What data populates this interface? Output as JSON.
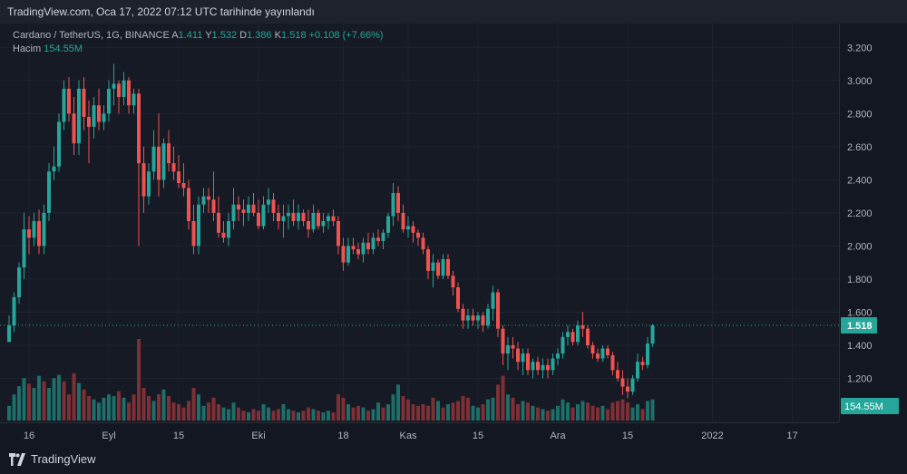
{
  "header": {
    "published": "TradingView.com, Oca 17, 2022 07:12 UTC tarihinde yayınlandı"
  },
  "legend": {
    "symbol": "Cardano / TetherUS, 1G, BINANCE",
    "o_label": "A",
    "o_value": "1.411",
    "h_label": "Y",
    "h_value": "1.532",
    "l_label": "D",
    "l_value": "1.386",
    "c_label": "K",
    "c_value": "1.518",
    "change": "+0.108 (+7.66%)",
    "volume_label": "Hacim",
    "volume_value": "154.55M"
  },
  "price_badge": "1.518",
  "volume_badge": "154.55M",
  "footer": {
    "brand": "TradingView"
  },
  "colors": {
    "up": "#26a69a",
    "down": "#ef5350",
    "up_vol": "#1e6e69",
    "down_vol": "#7e3035",
    "grid": "#1f2330",
    "text": "#b2b5be"
  },
  "chart_data": {
    "type": "candlestick",
    "yticks": [
      "1.200",
      "1.400",
      "1.600",
      "1.800",
      "2.000",
      "2.200",
      "2.400",
      "2.600",
      "2.800",
      "3.000",
      "3.200"
    ],
    "ylim": [
      1.0,
      3.3
    ],
    "xticks": [
      {
        "label": "16",
        "index": 4
      },
      {
        "label": "Eyl",
        "index": 20
      },
      {
        "label": "15",
        "index": 34
      },
      {
        "label": "Eki",
        "index": 50
      },
      {
        "label": "18",
        "index": 67
      },
      {
        "label": "Kas",
        "index": 80
      },
      {
        "label": "15",
        "index": 94
      },
      {
        "label": "Ara",
        "index": 110
      },
      {
        "label": "15",
        "index": 124
      },
      {
        "label": "2022",
        "index": 141
      },
      {
        "label": "17",
        "index": 157
      }
    ],
    "ohlc": [
      [
        1.42,
        1.58,
        1.42,
        1.52
      ],
      [
        1.52,
        1.72,
        1.48,
        1.69
      ],
      [
        1.69,
        1.9,
        1.65,
        1.87
      ],
      [
        1.87,
        2.2,
        1.8,
        2.1
      ],
      [
        2.1,
        2.18,
        1.95,
        2.05
      ],
      [
        2.05,
        2.2,
        2.0,
        2.15
      ],
      [
        2.15,
        2.22,
        1.95,
        2.0
      ],
      [
        2.0,
        2.25,
        1.95,
        2.2
      ],
      [
        2.2,
        2.5,
        2.15,
        2.45
      ],
      [
        2.45,
        2.6,
        2.4,
        2.48
      ],
      [
        2.48,
        2.8,
        2.45,
        2.75
      ],
      [
        2.75,
        3.0,
        2.7,
        2.95
      ],
      [
        2.95,
        3.02,
        2.75,
        2.8
      ],
      [
        2.8,
        2.9,
        2.55,
        2.62
      ],
      [
        2.62,
        3.0,
        2.55,
        2.95
      ],
      [
        2.95,
        3.02,
        2.7,
        2.78
      ],
      [
        2.78,
        2.88,
        2.5,
        2.72
      ],
      [
        2.72,
        2.9,
        2.65,
        2.85
      ],
      [
        2.85,
        2.95,
        2.7,
        2.75
      ],
      [
        2.75,
        2.85,
        2.7,
        2.8
      ],
      [
        2.8,
        3.0,
        2.75,
        2.95
      ],
      [
        2.95,
        3.1,
        2.85,
        2.98
      ],
      [
        2.98,
        3.0,
        2.8,
        2.9
      ],
      [
        2.9,
        3.05,
        2.85,
        3.0
      ],
      [
        3.0,
        3.02,
        2.8,
        2.85
      ],
      [
        2.85,
        2.95,
        2.8,
        2.92
      ],
      [
        2.92,
        2.95,
        2.0,
        2.5
      ],
      [
        2.5,
        2.6,
        2.2,
        2.3
      ],
      [
        2.3,
        2.5,
        2.25,
        2.45
      ],
      [
        2.45,
        2.7,
        2.4,
        2.6
      ],
      [
        2.6,
        2.8,
        2.3,
        2.4
      ],
      [
        2.4,
        2.65,
        2.35,
        2.62
      ],
      [
        2.62,
        2.7,
        2.45,
        2.5
      ],
      [
        2.5,
        2.6,
        2.4,
        2.45
      ],
      [
        2.45,
        2.55,
        2.35,
        2.38
      ],
      [
        2.38,
        2.5,
        2.3,
        2.35
      ],
      [
        2.35,
        2.4,
        2.1,
        2.15
      ],
      [
        2.15,
        2.25,
        1.95,
        2.0
      ],
      [
        2.0,
        2.3,
        1.95,
        2.25
      ],
      [
        2.25,
        2.35,
        2.2,
        2.3
      ],
      [
        2.3,
        2.35,
        2.2,
        2.28
      ],
      [
        2.28,
        2.45,
        2.15,
        2.2
      ],
      [
        2.2,
        2.3,
        2.05,
        2.08
      ],
      [
        2.08,
        2.15,
        2.02,
        2.05
      ],
      [
        2.05,
        2.2,
        2.0,
        2.15
      ],
      [
        2.15,
        2.35,
        2.1,
        2.25
      ],
      [
        2.25,
        2.3,
        2.15,
        2.22
      ],
      [
        2.22,
        2.28,
        2.12,
        2.2
      ],
      [
        2.2,
        2.3,
        2.15,
        2.25
      ],
      [
        2.25,
        2.32,
        2.18,
        2.2
      ],
      [
        2.2,
        2.28,
        2.1,
        2.12
      ],
      [
        2.12,
        2.3,
        2.1,
        2.25
      ],
      [
        2.25,
        2.35,
        2.2,
        2.28
      ],
      [
        2.28,
        2.32,
        2.15,
        2.2
      ],
      [
        2.2,
        2.25,
        2.1,
        2.15
      ],
      [
        2.15,
        2.25,
        2.05,
        2.18
      ],
      [
        2.18,
        2.25,
        2.1,
        2.2
      ],
      [
        2.2,
        2.28,
        2.12,
        2.15
      ],
      [
        2.15,
        2.25,
        2.1,
        2.2
      ],
      [
        2.2,
        2.22,
        2.12,
        2.15
      ],
      [
        2.15,
        2.22,
        2.05,
        2.1
      ],
      [
        2.1,
        2.25,
        2.08,
        2.2
      ],
      [
        2.2,
        2.22,
        2.1,
        2.12
      ],
      [
        2.12,
        2.2,
        2.08,
        2.15
      ],
      [
        2.15,
        2.2,
        2.1,
        2.18
      ],
      [
        2.18,
        2.22,
        2.12,
        2.15
      ],
      [
        2.15,
        2.18,
        1.95,
        2.0
      ],
      [
        2.0,
        2.05,
        1.85,
        1.9
      ],
      [
        1.9,
        2.05,
        1.88,
        2.0
      ],
      [
        2.0,
        2.05,
        1.95,
        1.98
      ],
      [
        1.98,
        2.02,
        1.92,
        1.95
      ],
      [
        1.95,
        2.05,
        1.9,
        2.02
      ],
      [
        2.02,
        2.08,
        1.95,
        1.98
      ],
      [
        1.98,
        2.08,
        1.95,
        2.05
      ],
      [
        2.05,
        2.1,
        2.0,
        2.03
      ],
      [
        2.03,
        2.1,
        1.98,
        2.08
      ],
      [
        2.08,
        2.2,
        2.05,
        2.18
      ],
      [
        2.18,
        2.38,
        2.12,
        2.32
      ],
      [
        2.32,
        2.36,
        2.15,
        2.2
      ],
      [
        2.2,
        2.25,
        2.08,
        2.1
      ],
      [
        2.1,
        2.18,
        2.05,
        2.12
      ],
      [
        2.12,
        2.15,
        2.02,
        2.08
      ],
      [
        2.08,
        2.1,
        2.0,
        2.05
      ],
      [
        2.05,
        2.08,
        1.95,
        1.98
      ],
      [
        1.98,
        2.0,
        1.8,
        1.85
      ],
      [
        1.85,
        1.95,
        1.75,
        1.9
      ],
      [
        1.9,
        1.92,
        1.8,
        1.82
      ],
      [
        1.82,
        1.95,
        1.8,
        1.92
      ],
      [
        1.92,
        1.95,
        1.8,
        1.82
      ],
      [
        1.82,
        1.85,
        1.7,
        1.75
      ],
      [
        1.75,
        1.78,
        1.6,
        1.62
      ],
      [
        1.62,
        1.65,
        1.5,
        1.55
      ],
      [
        1.55,
        1.62,
        1.5,
        1.58
      ],
      [
        1.58,
        1.62,
        1.52,
        1.55
      ],
      [
        1.55,
        1.6,
        1.5,
        1.58
      ],
      [
        1.58,
        1.6,
        1.48,
        1.52
      ],
      [
        1.52,
        1.65,
        1.5,
        1.62
      ],
      [
        1.62,
        1.76,
        1.55,
        1.72
      ],
      [
        1.72,
        1.74,
        1.45,
        1.5
      ],
      [
        1.5,
        1.52,
        1.28,
        1.35
      ],
      [
        1.35,
        1.45,
        1.25,
        1.4
      ],
      [
        1.4,
        1.45,
        1.32,
        1.38
      ],
      [
        1.38,
        1.42,
        1.25,
        1.3
      ],
      [
        1.3,
        1.38,
        1.22,
        1.35
      ],
      [
        1.35,
        1.38,
        1.22,
        1.25
      ],
      [
        1.25,
        1.32,
        1.2,
        1.3
      ],
      [
        1.3,
        1.33,
        1.22,
        1.25
      ],
      [
        1.25,
        1.32,
        1.2,
        1.28
      ],
      [
        1.28,
        1.32,
        1.2,
        1.25
      ],
      [
        1.25,
        1.35,
        1.22,
        1.32
      ],
      [
        1.32,
        1.38,
        1.28,
        1.35
      ],
      [
        1.35,
        1.48,
        1.32,
        1.45
      ],
      [
        1.45,
        1.52,
        1.4,
        1.48
      ],
      [
        1.48,
        1.5,
        1.4,
        1.42
      ],
      [
        1.42,
        1.55,
        1.4,
        1.52
      ],
      [
        1.52,
        1.6,
        1.45,
        1.5
      ],
      [
        1.5,
        1.52,
        1.38,
        1.4
      ],
      [
        1.4,
        1.42,
        1.32,
        1.35
      ],
      [
        1.35,
        1.38,
        1.3,
        1.32
      ],
      [
        1.32,
        1.4,
        1.3,
        1.38
      ],
      [
        1.38,
        1.4,
        1.32,
        1.34
      ],
      [
        1.34,
        1.36,
        1.22,
        1.25
      ],
      [
        1.25,
        1.3,
        1.18,
        1.2
      ],
      [
        1.2,
        1.25,
        1.1,
        1.15
      ],
      [
        1.15,
        1.2,
        1.08,
        1.12
      ],
      [
        1.12,
        1.22,
        1.1,
        1.2
      ],
      [
        1.2,
        1.35,
        1.18,
        1.3
      ],
      [
        1.3,
        1.33,
        1.25,
        1.28
      ],
      [
        1.28,
        1.45,
        1.26,
        1.41
      ],
      [
        1.41,
        1.53,
        1.39,
        1.52
      ]
    ],
    "volume": [
      [
        18,
        1
      ],
      [
        32,
        1
      ],
      [
        42,
        1
      ],
      [
        52,
        1
      ],
      [
        45,
        0
      ],
      [
        40,
        1
      ],
      [
        55,
        1
      ],
      [
        48,
        0
      ],
      [
        40,
        1
      ],
      [
        52,
        1
      ],
      [
        56,
        1
      ],
      [
        48,
        0
      ],
      [
        32,
        0
      ],
      [
        58,
        0
      ],
      [
        46,
        1
      ],
      [
        38,
        0
      ],
      [
        30,
        0
      ],
      [
        26,
        1
      ],
      [
        22,
        1
      ],
      [
        28,
        1
      ],
      [
        32,
        1
      ],
      [
        30,
        1
      ],
      [
        36,
        0
      ],
      [
        28,
        1
      ],
      [
        22,
        0
      ],
      [
        32,
        0
      ],
      [
        100,
        0
      ],
      [
        40,
        0
      ],
      [
        30,
        0
      ],
      [
        24,
        1
      ],
      [
        32,
        0
      ],
      [
        38,
        1
      ],
      [
        30,
        0
      ],
      [
        22,
        0
      ],
      [
        20,
        0
      ],
      [
        16,
        0
      ],
      [
        24,
        0
      ],
      [
        40,
        0
      ],
      [
        32,
        1
      ],
      [
        18,
        1
      ],
      [
        22,
        0
      ],
      [
        28,
        0
      ],
      [
        20,
        0
      ],
      [
        16,
        1
      ],
      [
        14,
        1
      ],
      [
        22,
        1
      ],
      [
        16,
        0
      ],
      [
        12,
        0
      ],
      [
        10,
        1
      ],
      [
        14,
        0
      ],
      [
        12,
        0
      ],
      [
        20,
        1
      ],
      [
        16,
        1
      ],
      [
        12,
        0
      ],
      [
        14,
        0
      ],
      [
        20,
        1
      ],
      [
        14,
        1
      ],
      [
        12,
        0
      ],
      [
        10,
        1
      ],
      [
        12,
        0
      ],
      [
        16,
        0
      ],
      [
        14,
        1
      ],
      [
        12,
        0
      ],
      [
        10,
        1
      ],
      [
        12,
        1
      ],
      [
        10,
        0
      ],
      [
        32,
        0
      ],
      [
        28,
        0
      ],
      [
        20,
        1
      ],
      [
        16,
        0
      ],
      [
        18,
        0
      ],
      [
        16,
        1
      ],
      [
        12,
        0
      ],
      [
        14,
        1
      ],
      [
        22,
        1
      ],
      [
        16,
        0
      ],
      [
        20,
        1
      ],
      [
        32,
        1
      ],
      [
        44,
        1
      ],
      [
        30,
        0
      ],
      [
        26,
        0
      ],
      [
        20,
        0
      ],
      [
        18,
        0
      ],
      [
        20,
        0
      ],
      [
        18,
        0
      ],
      [
        28,
        0
      ],
      [
        24,
        1
      ],
      [
        16,
        0
      ],
      [
        20,
        1
      ],
      [
        22,
        0
      ],
      [
        24,
        0
      ],
      [
        30,
        0
      ],
      [
        28,
        0
      ],
      [
        18,
        1
      ],
      [
        16,
        1
      ],
      [
        20,
        0
      ],
      [
        26,
        1
      ],
      [
        28,
        1
      ],
      [
        44,
        0
      ],
      [
        55,
        0
      ],
      [
        32,
        1
      ],
      [
        28,
        0
      ],
      [
        20,
        0
      ],
      [
        24,
        1
      ],
      [
        22,
        0
      ],
      [
        18,
        1
      ],
      [
        16,
        0
      ],
      [
        14,
        1
      ],
      [
        12,
        0
      ],
      [
        14,
        1
      ],
      [
        18,
        1
      ],
      [
        26,
        1
      ],
      [
        22,
        1
      ],
      [
        16,
        0
      ],
      [
        20,
        1
      ],
      [
        24,
        1
      ],
      [
        22,
        0
      ],
      [
        18,
        0
      ],
      [
        16,
        0
      ],
      [
        18,
        1
      ],
      [
        14,
        0
      ],
      [
        22,
        0
      ],
      [
        24,
        0
      ],
      [
        26,
        0
      ],
      [
        22,
        0
      ],
      [
        16,
        1
      ],
      [
        20,
        1
      ],
      [
        14,
        0
      ],
      [
        24,
        1
      ],
      [
        26,
        1
      ]
    ]
  }
}
